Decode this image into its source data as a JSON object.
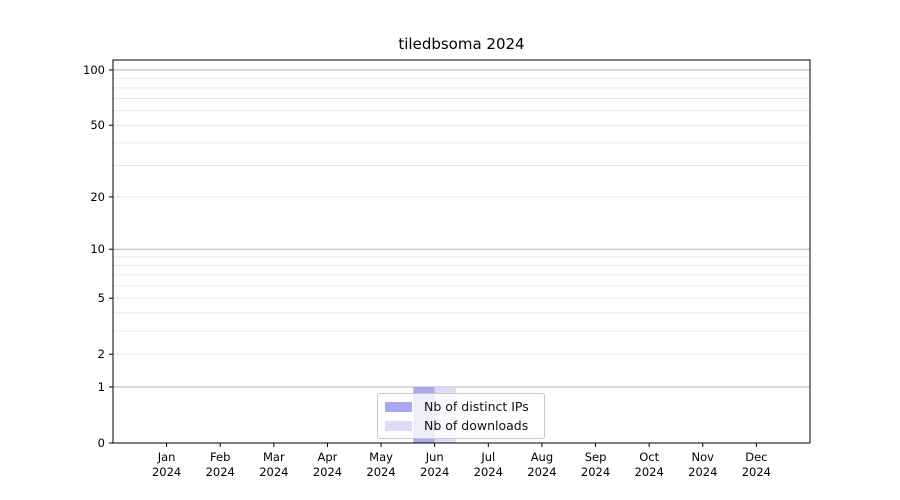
{
  "figure": {
    "title": "tiledbsoma 2024"
  },
  "chart_data": {
    "type": "bar",
    "title": "tiledbsoma 2024",
    "categories": [
      "Jan 2024",
      "Feb 2024",
      "Mar 2024",
      "Apr 2024",
      "May 2024",
      "Jun 2024",
      "Jul 2024",
      "Aug 2024",
      "Sep 2024",
      "Oct 2024",
      "Nov 2024",
      "Dec 2024"
    ],
    "series": [
      {
        "name": "Nb of distinct IPs",
        "color": "#a9a9f3",
        "values": [
          0,
          0,
          0,
          0,
          0,
          1,
          0,
          0,
          0,
          0,
          0,
          0
        ]
      },
      {
        "name": "Nb of downloads",
        "color": "#dcdcf8",
        "values": [
          0,
          0,
          0,
          0,
          0,
          1,
          0,
          0,
          0,
          0,
          0,
          0
        ]
      }
    ],
    "xlabel": "",
    "ylabel": "",
    "yscale": "log1p",
    "yticks": [
      0,
      1,
      2,
      5,
      10,
      20,
      50,
      100
    ],
    "minor_gridlines": [
      2,
      3,
      4,
      5,
      6,
      7,
      8,
      9,
      20,
      30,
      40,
      50,
      60,
      70,
      80,
      90
    ],
    "major_gridlines": [
      1,
      10,
      100
    ],
    "ylim": [
      0,
      114
    ],
    "grid": "horizontal",
    "legend_position": "bottom-center"
  },
  "colors": {
    "major_grid": "#b0b0b0",
    "minor_grid": "#e7e7e7",
    "axis": "#000000",
    "text": "#000000",
    "background": "#ffffff"
  }
}
